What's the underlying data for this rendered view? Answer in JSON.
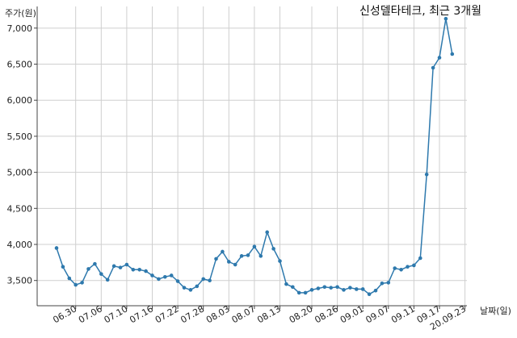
{
  "chart_data": {
    "type": "line",
    "title": "신성델타테크, 최근 3개월",
    "ylabel": "주가(원)",
    "xlabel": "날짜(일)",
    "ylim": [
      3150,
      7300
    ],
    "yticks": [
      3500,
      4000,
      4500,
      5000,
      5500,
      6000,
      6500,
      7000
    ],
    "ytick_labels": [
      "3,500",
      "4,000",
      "4,500",
      "5,000",
      "5,500",
      "6,000",
      "6,500",
      "7,000"
    ],
    "xtick_labels": [
      "06.30",
      "07.06",
      "07.10",
      "07.16",
      "07.22",
      "07.28",
      "08.03",
      "08.07",
      "08.13",
      "08.20",
      "08.26",
      "09.01",
      "09.07",
      "09.11",
      "09.17",
      "20.09.23"
    ],
    "xtick_indices": [
      3,
      7,
      11,
      15,
      19,
      23,
      27,
      31,
      35,
      40,
      44,
      48,
      52,
      56,
      60,
      64
    ],
    "grid": true,
    "line_color": "#2e79ad",
    "series": [
      {
        "name": "",
        "values": [
          3950,
          3690,
          3530,
          3440,
          3470,
          3660,
          3730,
          3590,
          3510,
          3700,
          3680,
          3720,
          3650,
          3650,
          3630,
          3570,
          3520,
          3550,
          3570,
          3490,
          3400,
          3370,
          3420,
          3520,
          3500,
          3800,
          3900,
          3760,
          3720,
          3840,
          3850,
          3970,
          3840,
          4170,
          3940,
          3770,
          3450,
          3410,
          3330,
          3330,
          3370,
          3390,
          3410,
          3400,
          3410,
          3370,
          3400,
          3380,
          3380,
          3310,
          3360,
          3460,
          3470,
          3670,
          3650,
          3690,
          3710,
          3810,
          4970,
          6450,
          6590,
          7130,
          6640
        ]
      }
    ]
  }
}
